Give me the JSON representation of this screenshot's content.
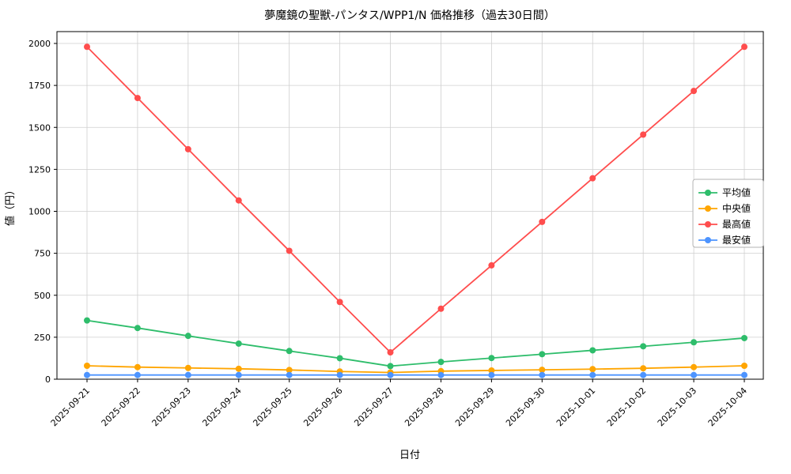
{
  "chart_data": {
    "type": "line",
    "title": "夢魔鏡の聖獣-パンタス/WPP1/N 価格推移（過去30日間）",
    "xlabel": "日付",
    "ylabel": "値（円）",
    "categories": [
      "2025-09-21",
      "2025-09-22",
      "2025-09-23",
      "2025-09-24",
      "2025-09-25",
      "2025-09-26",
      "2025-09-27",
      "2025-09-28",
      "2025-09-29",
      "2025-09-30",
      "2025-10-01",
      "2025-10-02",
      "2025-10-03",
      "2025-10-04"
    ],
    "ylim": [
      0,
      2000
    ],
    "yticks": [
      0,
      250,
      500,
      750,
      1000,
      1250,
      1500,
      1750,
      2000
    ],
    "grid": true,
    "legend_position": "center right",
    "series": [
      {
        "key": "average",
        "name": "平均値",
        "color": "#2ebd6b",
        "values": [
          350,
          305,
          258,
          212,
          168,
          125,
          78,
          103,
          126,
          149,
          172,
          196,
          220,
          245
        ]
      },
      {
        "key": "median",
        "name": "中央値",
        "color": "#ffa500",
        "values": [
          80,
          72,
          67,
          62,
          55,
          46,
          40,
          48,
          52,
          56,
          60,
          65,
          72,
          80
        ]
      },
      {
        "key": "max",
        "name": "最高値",
        "color": "#ff4d4d",
        "values": [
          1980,
          1675,
          1370,
          1065,
          765,
          460,
          160,
          420,
          678,
          937,
          1197,
          1457,
          1717,
          1980
        ]
      },
      {
        "key": "min",
        "name": "最安値",
        "color": "#4d94ff",
        "values": [
          25,
          25,
          25,
          25,
          25,
          25,
          25,
          25,
          25,
          25,
          25,
          25,
          25,
          25
        ]
      }
    ]
  }
}
